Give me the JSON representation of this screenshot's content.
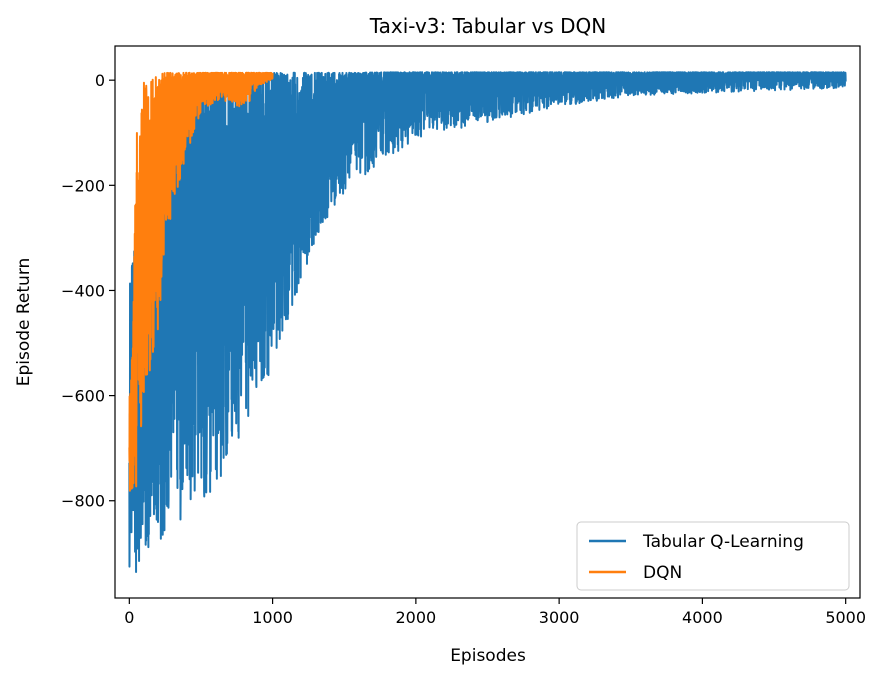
{
  "chart_data": {
    "type": "line",
    "title": "Taxi-v3: Tabular vs DQN",
    "xlabel": "Episodes",
    "ylabel": "Episode Return",
    "xlim": [
      -100,
      5100
    ],
    "ylim": [
      -985,
      65
    ],
    "xticks": [
      0,
      1000,
      2000,
      3000,
      4000,
      5000
    ],
    "yticks": [
      0,
      -200,
      -400,
      -600,
      -800
    ],
    "xtick_labels": [
      "0",
      "1000",
      "2000",
      "3000",
      "4000",
      "5000"
    ],
    "ytick_labels": [
      "0",
      "−200",
      "−400",
      "−600",
      "−800"
    ],
    "grid": false,
    "legend_position": "lower-right",
    "series": [
      {
        "name": "Tabular Q-Learning",
        "color": "#1f77b4",
        "episodes": 5000,
        "x": [
          0,
          50,
          100,
          200,
          300,
          400,
          500,
          600,
          700,
          800,
          900,
          1000,
          1200,
          1400,
          1600,
          1800,
          2000,
          2500,
          3000,
          3500,
          4000,
          4500,
          5000
        ],
        "upper": [
          -380,
          -300,
          -200,
          -100,
          -60,
          -30,
          -10,
          0,
          5,
          10,
          12,
          14,
          14,
          14,
          14,
          15,
          15,
          15,
          15,
          15,
          15,
          15,
          15
        ],
        "lower": [
          -930,
          -940,
          -900,
          -880,
          -860,
          -830,
          -800,
          -780,
          -720,
          -660,
          -600,
          -560,
          -380,
          -250,
          -190,
          -150,
          -110,
          -80,
          -50,
          -30,
          -25,
          -20,
          -15
        ]
      },
      {
        "name": "DQN",
        "color": "#ff7f0e",
        "episodes": 1000,
        "x": [
          0,
          25,
          50,
          75,
          100,
          150,
          200,
          250,
          300,
          350,
          400,
          500,
          600,
          700,
          800,
          900,
          1000
        ],
        "upper": [
          -610,
          -500,
          -90,
          -100,
          -5,
          0,
          10,
          14,
          14,
          14,
          14,
          14,
          14,
          14,
          14,
          14,
          14
        ],
        "lower": [
          -830,
          -830,
          -800,
          -700,
          -620,
          -560,
          -480,
          -300,
          -250,
          -200,
          -140,
          -60,
          -40,
          -40,
          -60,
          -10,
          0
        ]
      }
    ]
  }
}
